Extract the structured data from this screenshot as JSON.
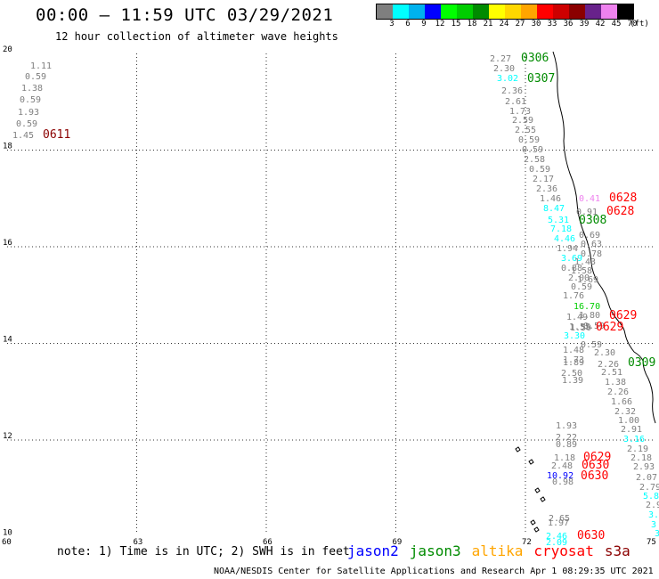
{
  "header": {
    "title": "00:00 – 11:59 UTC 03/29/2021",
    "subtitle": "12 hour collection of altimeter wave heights"
  },
  "colorbar": {
    "colors": [
      "#7f7f7f",
      "#00ffff",
      "#00b2ee",
      "#0000ff",
      "#00ff00",
      "#00cd00",
      "#008b00",
      "#ffff00",
      "#ffd700",
      "#ffa500",
      "#ff0000",
      "#cd0000",
      "#8b0000",
      "#68228b",
      "#ee82ee",
      "#000000"
    ],
    "labels": [
      "3",
      "6",
      "9",
      "12",
      "15",
      "18",
      "21",
      "24",
      "27",
      "30",
      "33",
      "36",
      "39",
      "42",
      "45",
      "70",
      "(ft)"
    ]
  },
  "map": {
    "x_ticks": [
      "60",
      "63",
      "66",
      "69",
      "72",
      "75"
    ],
    "y_ticks": [
      "20",
      "18",
      "16",
      "14",
      "12",
      "10"
    ],
    "track": "thin black wavy track line running from about 72.5,20 south-east to about 75,12"
  },
  "labels": [
    {
      "text": "1.11",
      "c": "#7f7f7f"
    },
    {
      "text": "0.59",
      "c": "#7f7f7f"
    },
    {
      "text": "1.38",
      "c": "#7f7f7f"
    },
    {
      "text": "0.59",
      "c": "#7f7f7f"
    },
    {
      "text": "1.93",
      "c": "#7f7f7f"
    },
    {
      "text": "0.59",
      "c": "#7f7f7f"
    },
    {
      "text": "1.45",
      "c": "#7f7f7f"
    },
    {
      "text": "0611",
      "c": "#8b0000"
    },
    {
      "text": "2.27",
      "c": "#7f7f7f"
    },
    {
      "text": "0306",
      "c": "#008b00"
    },
    {
      "text": "2.30",
      "c": "#7f7f7f"
    },
    {
      "text": "3.02",
      "c": "#00ffff"
    },
    {
      "text": "0307",
      "c": "#008b00"
    },
    {
      "text": "2.36",
      "c": "#7f7f7f"
    },
    {
      "text": "2.61",
      "c": "#7f7f7f"
    },
    {
      "text": "1.73",
      "c": "#7f7f7f"
    },
    {
      "text": "2.59",
      "c": "#7f7f7f"
    },
    {
      "text": "2.55",
      "c": "#7f7f7f"
    },
    {
      "text": "0.59",
      "c": "#7f7f7f"
    },
    {
      "text": "0.59",
      "c": "#7f7f7f"
    },
    {
      "text": "2.58",
      "c": "#7f7f7f"
    },
    {
      "text": "0.59",
      "c": "#7f7f7f"
    },
    {
      "text": "2.17",
      "c": "#7f7f7f"
    },
    {
      "text": "2.36",
      "c": "#7f7f7f"
    },
    {
      "text": "1.46",
      "c": "#7f7f7f"
    },
    {
      "text": "0.41",
      "c": "#ee82ee"
    },
    {
      "text": "0628",
      "c": "#ff0000"
    },
    {
      "text": "8.47",
      "c": "#00ffff"
    },
    {
      "text": "0.91",
      "c": "#7f7f7f"
    },
    {
      "text": "0628",
      "c": "#ff0000"
    },
    {
      "text": "5.31",
      "c": "#00ffff"
    },
    {
      "text": "0308",
      "c": "#008b00"
    },
    {
      "text": "7.18",
      "c": "#00ffff"
    },
    {
      "text": "0.69",
      "c": "#7f7f7f"
    },
    {
      "text": "4.46",
      "c": "#00ffff"
    },
    {
      "text": "0.63",
      "c": "#7f7f7f"
    },
    {
      "text": "1.94",
      "c": "#7f7f7f"
    },
    {
      "text": "0.78",
      "c": "#7f7f7f"
    },
    {
      "text": "3.69",
      "c": "#00ffff"
    },
    {
      "text": "1.43",
      "c": "#7f7f7f"
    },
    {
      "text": "0.88",
      "c": "#7f7f7f"
    },
    {
      "text": "1.58",
      "c": "#7f7f7f"
    },
    {
      "text": "2.00",
      "c": "#7f7f7f"
    },
    {
      "text": "1.69",
      "c": "#7f7f7f"
    },
    {
      "text": "0.59",
      "c": "#7f7f7f"
    },
    {
      "text": "1.76",
      "c": "#7f7f7f"
    },
    {
      "text": "16.70",
      "c": "#00cd00"
    },
    {
      "text": "1.80",
      "c": "#7f7f7f"
    },
    {
      "text": "1.49",
      "c": "#7f7f7f"
    },
    {
      "text": "0629",
      "c": "#ff0000"
    },
    {
      "text": "1.55",
      "c": "#7f7f7f"
    },
    {
      "text": "0.59",
      "c": "#7f7f7f"
    },
    {
      "text": "1.50",
      "c": "#7f7f7f"
    },
    {
      "text": "0629",
      "c": "#ff0000"
    },
    {
      "text": "3.30",
      "c": "#00ffff"
    },
    {
      "text": "0.59",
      "c": "#7f7f7f"
    },
    {
      "text": "1.48",
      "c": "#7f7f7f"
    },
    {
      "text": "2.30",
      "c": "#7f7f7f"
    },
    {
      "text": "1.73",
      "c": "#7f7f7f"
    },
    {
      "text": "1.89",
      "c": "#7f7f7f"
    },
    {
      "text": "2.26",
      "c": "#7f7f7f"
    },
    {
      "text": "0309",
      "c": "#008b00"
    },
    {
      "text": "2.50",
      "c": "#7f7f7f"
    },
    {
      "text": "2.51",
      "c": "#7f7f7f"
    },
    {
      "text": "1.39",
      "c": "#7f7f7f"
    },
    {
      "text": "1.38",
      "c": "#7f7f7f"
    },
    {
      "text": "2.26",
      "c": "#7f7f7f"
    },
    {
      "text": "1.66",
      "c": "#7f7f7f"
    },
    {
      "text": "2.32",
      "c": "#7f7f7f"
    },
    {
      "text": "1.00",
      "c": "#7f7f7f"
    },
    {
      "text": "1.93",
      "c": "#7f7f7f"
    },
    {
      "text": "2.91",
      "c": "#7f7f7f"
    },
    {
      "text": "2.22",
      "c": "#7f7f7f"
    },
    {
      "text": "3.16",
      "c": "#00ffff"
    },
    {
      "text": "0.89",
      "c": "#7f7f7f"
    },
    {
      "text": "2.19",
      "c": "#7f7f7f"
    },
    {
      "text": "1.18",
      "c": "#7f7f7f"
    },
    {
      "text": "0629",
      "c": "#ff0000"
    },
    {
      "text": "2.18",
      "c": "#7f7f7f"
    },
    {
      "text": "2.48",
      "c": "#7f7f7f"
    },
    {
      "text": "0630",
      "c": "#ff0000"
    },
    {
      "text": "2.93",
      "c": "#7f7f7f"
    },
    {
      "text": "10.92",
      "c": "#0000ff"
    },
    {
      "text": "0630",
      "c": "#ff0000"
    },
    {
      "text": "2.07",
      "c": "#7f7f7f"
    },
    {
      "text": "0.98",
      "c": "#7f7f7f"
    },
    {
      "text": "2.79",
      "c": "#7f7f7f"
    },
    {
      "text": "5.8",
      "c": "#00ffff"
    },
    {
      "text": "2.9",
      "c": "#7f7f7f"
    },
    {
      "text": "3.",
      "c": "#00ffff"
    },
    {
      "text": "3",
      "c": "#00ffff"
    },
    {
      "text": "3",
      "c": "#00ffff"
    },
    {
      "text": "2.65",
      "c": "#7f7f7f"
    },
    {
      "text": "1.97",
      "c": "#7f7f7f"
    },
    {
      "text": "2.46",
      "c": "#00ffff"
    },
    {
      "text": "0630",
      "c": "#ff0000"
    },
    {
      "text": "2.09",
      "c": "#00ffff"
    }
  ],
  "note": "note: 1) Time is in UTC; 2) SWH is in feet",
  "legend": [
    {
      "name": "jason2",
      "color": "#0000ff"
    },
    {
      "name": "jason3",
      "color": "#008b00"
    },
    {
      "name": "altika",
      "color": "#ffa500"
    },
    {
      "name": "cryosat",
      "color": "#ff0000"
    },
    {
      "name": "s3a",
      "color": "#8b0000"
    }
  ],
  "footer": "NOAA/NESDIS Center for Satellite Applications and Research   Apr  1 08:29:35 UTC 2021"
}
